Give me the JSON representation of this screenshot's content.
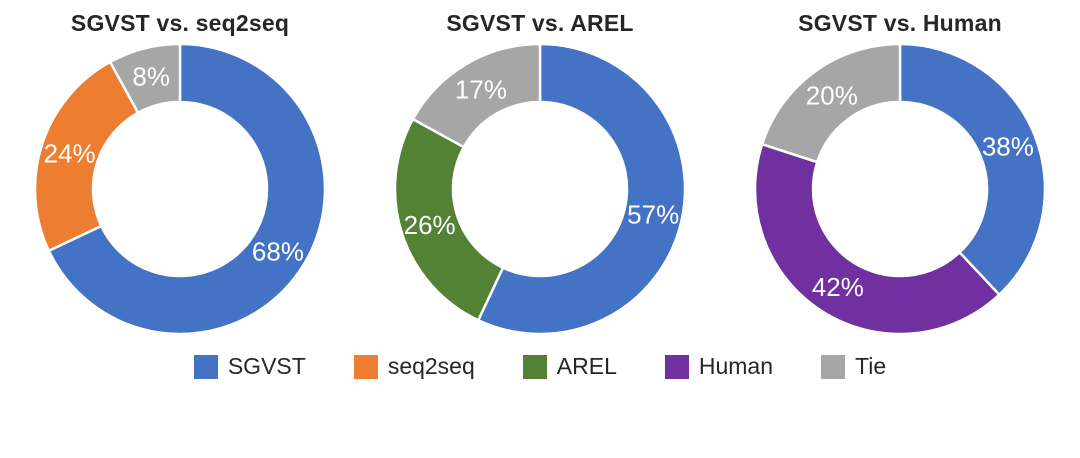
{
  "chart_data": [
    {
      "type": "pie",
      "subtype": "donut",
      "title": "SGVST vs. seq2seq",
      "categories": [
        "SGVST",
        "seq2seq",
        "Tie"
      ],
      "values": [
        68,
        24,
        8
      ],
      "labels": [
        "68%",
        "24%",
        "8%"
      ],
      "colors": [
        "#4472C4",
        "#ED7D31",
        "#A6A6A6"
      ],
      "start_angle_deg": 0,
      "direction": "clockwise",
      "legend_position": "bottom"
    },
    {
      "type": "pie",
      "subtype": "donut",
      "title": "SGVST vs. AREL",
      "categories": [
        "SGVST",
        "AREL",
        "Tie"
      ],
      "values": [
        57,
        26,
        17
      ],
      "labels": [
        "57%",
        "26%",
        "17%"
      ],
      "colors": [
        "#4472C4",
        "#548235",
        "#A6A6A6"
      ],
      "start_angle_deg": 0,
      "direction": "clockwise",
      "legend_position": "bottom"
    },
    {
      "type": "pie",
      "subtype": "donut",
      "title": "SGVST vs. Human",
      "categories": [
        "SGVST",
        "Human",
        "Tie"
      ],
      "values": [
        38,
        42,
        20
      ],
      "labels": [
        "38%",
        "42%",
        "20%"
      ],
      "colors": [
        "#4472C4",
        "#7030A0",
        "#A6A6A6"
      ],
      "start_angle_deg": 0,
      "direction": "clockwise",
      "legend_position": "bottom"
    }
  ],
  "legend": {
    "items": [
      {
        "label": "SGVST",
        "color": "#4472C4"
      },
      {
        "label": "seq2seq",
        "color": "#ED7D31"
      },
      {
        "label": "AREL",
        "color": "#548235"
      },
      {
        "label": "Human",
        "color": "#7030A0"
      },
      {
        "label": "Tie",
        "color": "#A6A6A6"
      }
    ]
  },
  "style": {
    "label_text_color": "#ffffff",
    "title_text_color": "#262626",
    "background_color": "#ffffff"
  }
}
